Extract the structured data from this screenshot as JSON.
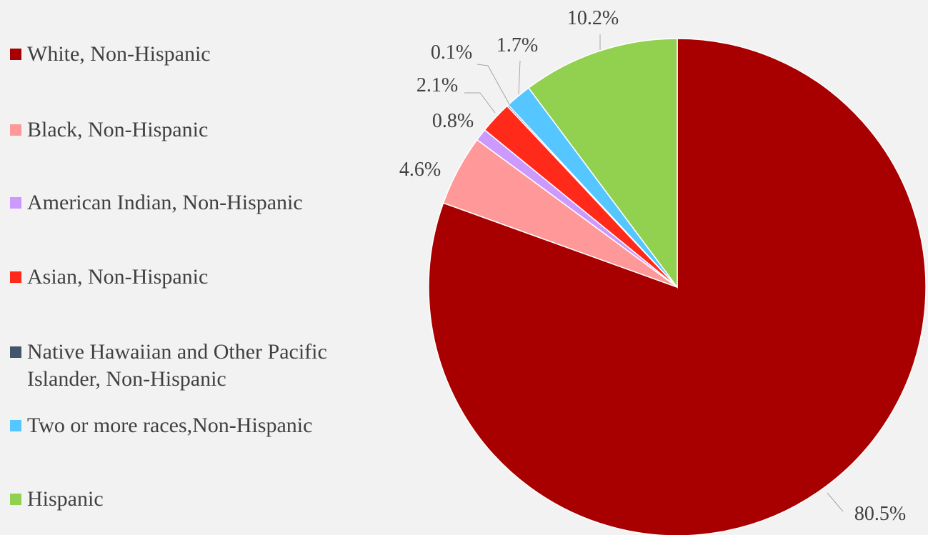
{
  "chart_data": {
    "type": "pie",
    "categories": [
      "White, Non-Hispanic",
      "Black, Non-Hispanic",
      "American Indian, Non-Hispanic",
      "Asian, Non-Hispanic",
      "Native Hawaiian and Other Pacific Islander, Non-Hispanic",
      "Two or more races,Non-Hispanic",
      "Hispanic"
    ],
    "legend_labels": [
      "White, Non-Hispanic",
      "Black, Non-Hispanic",
      "American Indian, Non-Hispanic",
      "Asian, Non-Hispanic",
      "Native Hawaiian and Other Pacific\nIslander, Non-Hispanic",
      "Two or more races,Non-Hispanic",
      "Hispanic"
    ],
    "values": [
      80.5,
      4.6,
      0.8,
      2.1,
      0.1,
      1.7,
      10.2
    ],
    "data_labels": [
      "80.5%",
      "4.6%",
      "0.8%",
      "2.1%",
      "0.1%",
      "1.7%",
      "10.2%"
    ],
    "colors": [
      "#a80000",
      "#ff9999",
      "#cc99ff",
      "#ff2a1a",
      "#44546a",
      "#55c6ff",
      "#92d050"
    ],
    "legend_position": "left",
    "title": ""
  }
}
